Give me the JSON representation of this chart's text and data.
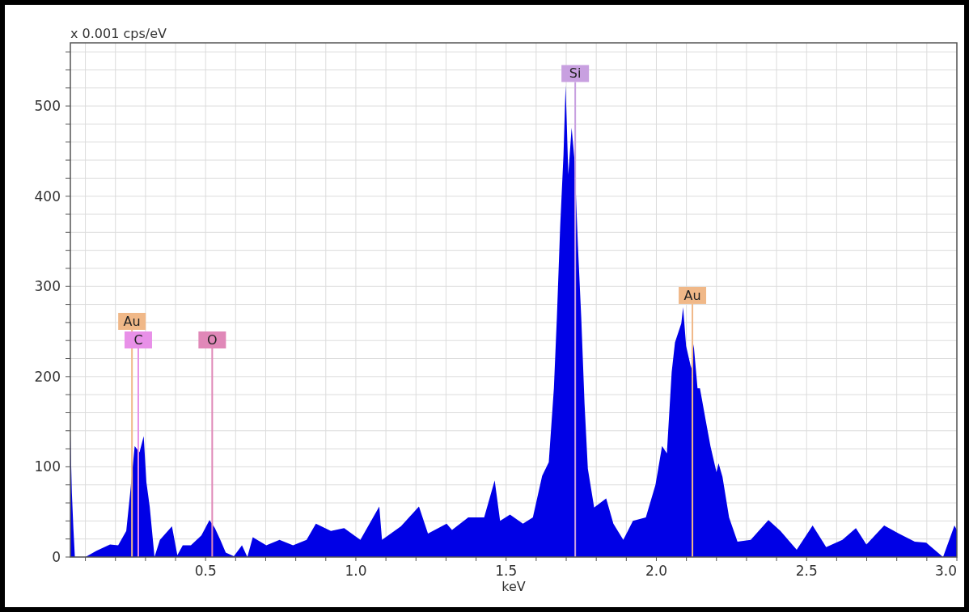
{
  "chart_data": {
    "type": "area",
    "ylabel": "x 0.001 cps/eV",
    "xlabel": "keV",
    "xlim": [
      0.05,
      3.0
    ],
    "ylim": [
      0,
      570
    ],
    "xticks": [
      {
        "value": 0.1,
        "label": null
      },
      {
        "value": 0.2,
        "label": null
      },
      {
        "value": 0.3,
        "label": null
      },
      {
        "value": 0.4,
        "label": null
      },
      0.5,
      {
        "value": 0.6,
        "label": null
      },
      {
        "value": 0.7,
        "label": null
      },
      {
        "value": 0.8,
        "label": null
      },
      {
        "value": 0.9,
        "label": null
      },
      {
        "value": 1,
        "label": "1.0"
      },
      {
        "value": 1.1,
        "label": null
      },
      {
        "value": 1.2,
        "label": null
      },
      {
        "value": 1.3,
        "label": null
      },
      {
        "value": 1.4,
        "label": null
      },
      1.5,
      {
        "value": 1.6,
        "label": null
      },
      {
        "value": 1.7,
        "label": null
      },
      {
        "value": 1.8,
        "label": null
      },
      {
        "value": 1.9,
        "label": null
      },
      {
        "value": 2,
        "label": "2.0"
      },
      {
        "value": 2.1,
        "label": null
      },
      {
        "value": 2.2,
        "label": null
      },
      {
        "value": 2.3,
        "label": null
      },
      {
        "value": 2.4,
        "label": null
      },
      2.5,
      {
        "value": 2.6,
        "label": null
      },
      {
        "value": 2.7,
        "label": null
      },
      {
        "value": 2.8,
        "label": null
      },
      {
        "value": 2.9,
        "label": null
      },
      {
        "value": 3,
        "label": "3.0"
      }
    ],
    "yticks": [
      0,
      {
        "value": 20,
        "label": null
      },
      {
        "value": 40,
        "label": null
      },
      {
        "value": 60,
        "label": null
      },
      {
        "value": 80,
        "label": null
      },
      100,
      {
        "value": 120,
        "label": null
      },
      {
        "value": 140,
        "label": null
      },
      {
        "value": 160,
        "label": null
      },
      {
        "value": 180,
        "label": null
      },
      200,
      {
        "value": 220,
        "label": null
      },
      {
        "value": 240,
        "label": null
      },
      {
        "value": 260,
        "label": null
      },
      {
        "value": 280,
        "label": null
      },
      300,
      {
        "value": 320,
        "label": null
      },
      {
        "value": 340,
        "label": null
      },
      {
        "value": 360,
        "label": null
      },
      {
        "value": 380,
        "label": null
      },
      400,
      {
        "value": 420,
        "label": null
      },
      {
        "value": 440,
        "label": null
      },
      {
        "value": 460,
        "label": null
      },
      {
        "value": 480,
        "label": null
      },
      500,
      {
        "value": 520,
        "label": null
      },
      {
        "value": 540,
        "label": null
      },
      {
        "value": 560,
        "label": null
      }
    ],
    "grid": true,
    "series": [
      {
        "color": "#0000e6",
        "x": [
          0.05,
          0.055,
          0.06,
          0.065,
          0.1,
          0.137,
          0.182,
          0.209,
          0.236,
          0.249,
          0.264,
          0.28,
          0.294,
          0.303,
          0.314,
          0.33,
          0.348,
          0.388,
          0.406,
          0.424,
          0.451,
          0.486,
          0.513,
          0.531,
          0.549,
          0.567,
          0.594,
          0.621,
          0.639,
          0.657,
          0.702,
          0.746,
          0.791,
          0.836,
          0.867,
          0.917,
          0.961,
          1.015,
          1.078,
          1.087,
          1.15,
          1.21,
          1.24,
          1.302,
          1.32,
          1.374,
          1.427,
          1.462,
          1.48,
          1.513,
          1.556,
          1.589,
          1.62,
          1.642,
          1.659,
          1.669,
          1.68,
          1.691,
          1.698,
          1.707,
          1.718,
          1.728,
          1.739,
          1.75,
          1.761,
          1.772,
          1.793,
          1.833,
          1.857,
          1.89,
          1.922,
          1.965,
          1.997,
          2.019,
          2.035,
          2.051,
          2.062,
          2.083,
          2.089,
          2.099,
          2.116,
          2.124,
          2.137,
          2.145,
          2.164,
          2.18,
          2.2,
          2.207,
          2.22,
          2.242,
          2.27,
          2.314,
          2.373,
          2.413,
          2.467,
          2.52,
          2.565,
          2.619,
          2.664,
          2.699,
          2.758,
          2.807,
          2.86,
          2.898,
          2.954,
          2.992,
          3.0
        ],
        "values": [
          137,
          71,
          32,
          0,
          0,
          7,
          14,
          13,
          29,
          71,
          123,
          116,
          134,
          83,
          56,
          0,
          19,
          34,
          2,
          13,
          13,
          24,
          41,
          32,
          19,
          5,
          1,
          13,
          0,
          22,
          13,
          19,
          13,
          19,
          37,
          29,
          32,
          19,
          56,
          19,
          34,
          56,
          26,
          37,
          30,
          44,
          44,
          85,
          40,
          47,
          37,
          44,
          90,
          105,
          187,
          266,
          367,
          446,
          523,
          424,
          476,
          439,
          345,
          266,
          170,
          98,
          55,
          65,
          37,
          19,
          40,
          44,
          80,
          123,
          115,
          205,
          238,
          259,
          277,
          234,
          209,
          236,
          187,
          187,
          152,
          123,
          94,
          104,
          89,
          44,
          17,
          19,
          41,
          29,
          8,
          35,
          11,
          19,
          32,
          14,
          35,
          26,
          17,
          16,
          0,
          35,
          30
        ]
      }
    ],
    "ref_lines": [
      {
        "axis": "x",
        "value": 0.255,
        "label": "Au",
        "color": "#f0b888"
      },
      {
        "axis": "x",
        "value": 0.276,
        "label": "C",
        "color": "#e890e8"
      },
      {
        "axis": "x",
        "value": 0.522,
        "label": "O",
        "color": "#e088b8"
      },
      {
        "axis": "x",
        "value": 1.73,
        "label": "Si",
        "color": "#c8a0e0"
      },
      {
        "axis": "x",
        "value": 2.12,
        "label": "Au",
        "color": "#f0b888"
      }
    ]
  }
}
